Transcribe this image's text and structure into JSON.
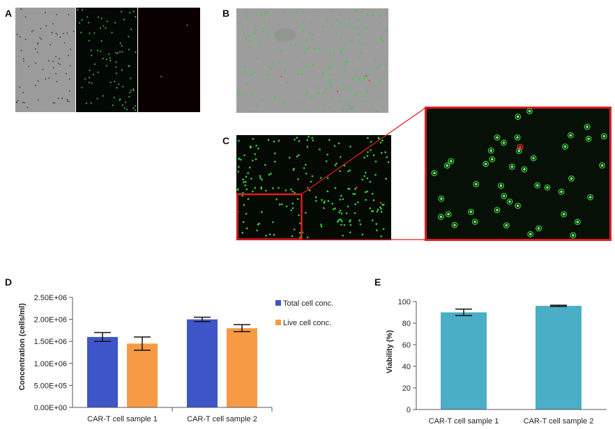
{
  "panels": {
    "a": "A",
    "b": "B",
    "c": "C",
    "d": "D",
    "e": "E"
  },
  "colors": {
    "total": "#3d55c6",
    "live": "#f79a45",
    "viability": "#4aaec6",
    "zoom_box": "#e11d1d",
    "cell_green": "#39d23b",
    "cell_red": "#ff3030"
  },
  "chart_data": [
    {
      "panel": "D",
      "type": "bar",
      "ylabel": "Concentration (cells/ml)",
      "ylim": [
        0,
        2500000
      ],
      "yticks": [
        "0.00E+00",
        "5.00E+05",
        "1.00E+06",
        "1.50E+06",
        "2.00E+06",
        "2.50E+06"
      ],
      "categories": [
        "CAR-T cell sample 1",
        "CAR-T cell sample 2"
      ],
      "legend_position": "right",
      "series": [
        {
          "name": "Total cell conc.",
          "values": [
            1600000,
            2000000
          ],
          "errors": [
            100000,
            50000
          ]
        },
        {
          "name": "Live cell conc.",
          "values": [
            1450000,
            1800000
          ],
          "errors": [
            150000,
            80000
          ]
        }
      ]
    },
    {
      "panel": "E",
      "type": "bar",
      "ylabel": "Viability (%)",
      "ylim": [
        0,
        100
      ],
      "yticks": [
        "0",
        "20",
        "40",
        "60",
        "80",
        "100"
      ],
      "categories": [
        "CAR-T cell sample 1",
        "CAR-T cell sample 2"
      ],
      "series": [
        {
          "values": [
            90,
            96
          ],
          "errors": [
            3,
            0.6
          ]
        }
      ]
    }
  ]
}
